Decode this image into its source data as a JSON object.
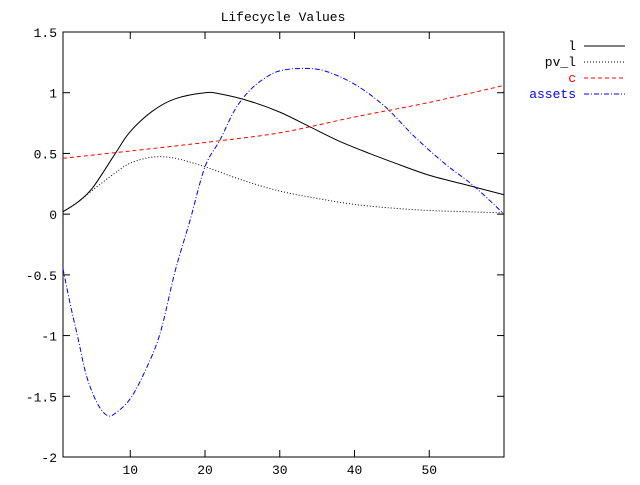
{
  "chart_data": {
    "type": "line",
    "title": "Lifecycle Values",
    "xlabel": "",
    "ylabel": "",
    "xlim": [
      1,
      60
    ],
    "ylim": [
      -2,
      1.5
    ],
    "xticks": [
      10,
      20,
      30,
      40,
      50
    ],
    "xtick_labels": [
      "10",
      "20",
      "30",
      "40",
      "50"
    ],
    "yticks": [
      1.5,
      1,
      0.5,
      0,
      -0.5,
      -1,
      -1.5,
      -2
    ],
    "ytick_labels": [
      "1.5",
      "1",
      "0.5",
      "0",
      "-0.5",
      "-1",
      "-1.5",
      "-2"
    ],
    "grid": false,
    "legend_position": "outside-top-right",
    "series": [
      {
        "name": "l",
        "color": "#000000",
        "style": "solid",
        "x": [
          1,
          3,
          5,
          8,
          10,
          13,
          16,
          20,
          22,
          26,
          30,
          34,
          38,
          42,
          45,
          50,
          55,
          60
        ],
        "y": [
          0.02,
          0.1,
          0.22,
          0.5,
          0.68,
          0.85,
          0.95,
          1.0,
          0.99,
          0.93,
          0.84,
          0.72,
          0.6,
          0.5,
          0.43,
          0.32,
          0.24,
          0.16
        ]
      },
      {
        "name": "pv_l",
        "color": "#000000",
        "style": "dotted",
        "x": [
          1,
          3,
          5,
          8,
          10,
          13,
          16,
          20,
          25,
          30,
          35,
          40,
          45,
          50,
          55,
          60
        ],
        "y": [
          0.02,
          0.1,
          0.2,
          0.34,
          0.42,
          0.47,
          0.46,
          0.39,
          0.28,
          0.19,
          0.13,
          0.08,
          0.05,
          0.03,
          0.02,
          0.01
        ]
      },
      {
        "name": "c",
        "color": "#ff0000",
        "style": "dashed",
        "x": [
          1,
          10,
          20,
          30,
          40,
          50,
          60
        ],
        "y": [
          0.46,
          0.52,
          0.59,
          0.67,
          0.8,
          0.92,
          1.06
        ]
      },
      {
        "name": "assets",
        "color": "#0000ff",
        "style": "dashdot",
        "x": [
          1,
          2,
          3,
          4,
          5,
          6,
          7,
          8,
          10,
          12,
          14,
          16,
          18,
          20,
          22,
          24,
          26,
          28,
          30,
          33,
          36,
          40,
          44,
          48,
          52,
          56,
          60
        ],
        "y": [
          -0.45,
          -0.75,
          -1.02,
          -1.3,
          -1.48,
          -1.6,
          -1.66,
          -1.64,
          -1.52,
          -1.29,
          -0.98,
          -0.47,
          -0.05,
          0.39,
          0.61,
          0.86,
          1.02,
          1.12,
          1.18,
          1.2,
          1.18,
          1.07,
          0.89,
          0.64,
          0.42,
          0.23,
          0.0
        ]
      }
    ]
  }
}
